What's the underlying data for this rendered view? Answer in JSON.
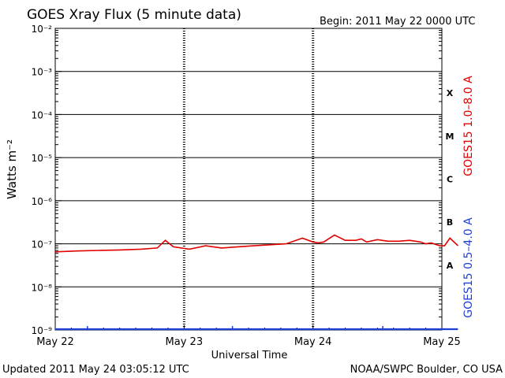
{
  "header": {
    "title": "GOES Xray Flux (5 minute data)",
    "begin": "Begin:  2011 May 22 0000 UTC"
  },
  "footer": {
    "updated": "Updated 2011 May 24 03:05:12 UTC",
    "source": "NOAA/SWPC Boulder, CO USA"
  },
  "colors": {
    "long_channel": "#e00000",
    "short_channel": "#1f3fd9",
    "grid": "#000000"
  },
  "chart_data": {
    "type": "line",
    "title": "GOES Xray Flux (5 minute data)",
    "xlabel": "Universal Time",
    "ylabel": "Watts m⁻²",
    "y_scale": "log",
    "ylim": [
      1e-09,
      0.01
    ],
    "x_start": "2011-05-22 00:00 UTC",
    "x_end": "2011-05-25 00:00 UTC",
    "x_ticks": [
      "May 22",
      "May 23",
      "May 24",
      "May 25"
    ],
    "y_ticks": [
      {
        "value": 1e-09,
        "label": "10⁻⁹"
      },
      {
        "value": 1e-08,
        "label": "10⁻⁸"
      },
      {
        "value": 1e-07,
        "label": "10⁻⁷"
      },
      {
        "value": 1e-06,
        "label": "10⁻⁶"
      },
      {
        "value": 1e-05,
        "label": "10⁻⁵"
      },
      {
        "value": 0.0001,
        "label": "10⁻⁴"
      },
      {
        "value": 0.001,
        "label": "10⁻³"
      },
      {
        "value": 0.01,
        "label": "10⁻²"
      }
    ],
    "flare_classes": [
      {
        "label": "A",
        "range": [
          1e-08,
          1e-07
        ]
      },
      {
        "label": "B",
        "range": [
          1e-07,
          1e-06
        ]
      },
      {
        "label": "C",
        "range": [
          1e-06,
          1e-05
        ]
      },
      {
        "label": "M",
        "range": [
          1e-05,
          0.0001
        ]
      },
      {
        "label": "X",
        "range": [
          0.0001,
          0.001
        ]
      }
    ],
    "grid": true,
    "series": [
      {
        "name": "GOES15 1.0–8.0 A",
        "color": "#e00000",
        "x": [
          "2011-05-22 00:00",
          "2011-05-22 04:00",
          "2011-05-22 08:00",
          "2011-05-22 12:00",
          "2011-05-22 16:00",
          "2011-05-22 19:00",
          "2011-05-22 20:30",
          "2011-05-22 22:00",
          "2011-05-23 01:00",
          "2011-05-23 04:00",
          "2011-05-23 07:00",
          "2011-05-23 10:00",
          "2011-05-23 13:00",
          "2011-05-23 16:00",
          "2011-05-23 19:00",
          "2011-05-23 22:00",
          "2011-05-24 00:00",
          "2011-05-24 01:00",
          "2011-05-24 02:00",
          "2011-05-24 04:00",
          "2011-05-24 06:00",
          "2011-05-24 08:00",
          "2011-05-24 09:00",
          "2011-05-24 10:00",
          "2011-05-24 12:00",
          "2011-05-24 14:00",
          "2011-05-24 16:00",
          "2011-05-24 18:00",
          "2011-05-24 20:00",
          "2011-05-24 21:00",
          "2011-05-24 22:00",
          "2011-05-24 23:00",
          "2011-05-24 23:40",
          "2011-05-25 00:30",
          "2011-05-25 01:30",
          "2011-05-25 03:00"
        ],
        "values": [
          6.5e-08,
          6.8e-08,
          7e-08,
          7.2e-08,
          7.5e-08,
          8e-08,
          1.2e-07,
          8.5e-08,
          7.5e-08,
          9e-08,
          8e-08,
          8.5e-08,
          9e-08,
          9.5e-08,
          1e-07,
          1.35e-07,
          1.1e-07,
          1.05e-07,
          1.1e-07,
          1.6e-07,
          1.2e-07,
          1.2e-07,
          1.3e-07,
          1.1e-07,
          1.25e-07,
          1.15e-07,
          1.15e-07,
          1.2e-07,
          1.1e-07,
          1e-07,
          1.05e-07,
          9.5e-08,
          9e-08,
          9e-08,
          1.35e-07,
          9e-08
        ]
      },
      {
        "name": "GOES15 0.5–4.0 A",
        "color": "#1f3fd9",
        "x": [
          "2011-05-22 00:00",
          "2011-05-22 12:00",
          "2011-05-23 00:00",
          "2011-05-23 12:00",
          "2011-05-24 00:00",
          "2011-05-24 12:00",
          "2011-05-25 03:00"
        ],
        "values": [
          1e-09,
          1e-09,
          1e-09,
          1e-09,
          1e-09,
          1e-09,
          1e-09
        ]
      }
    ]
  }
}
